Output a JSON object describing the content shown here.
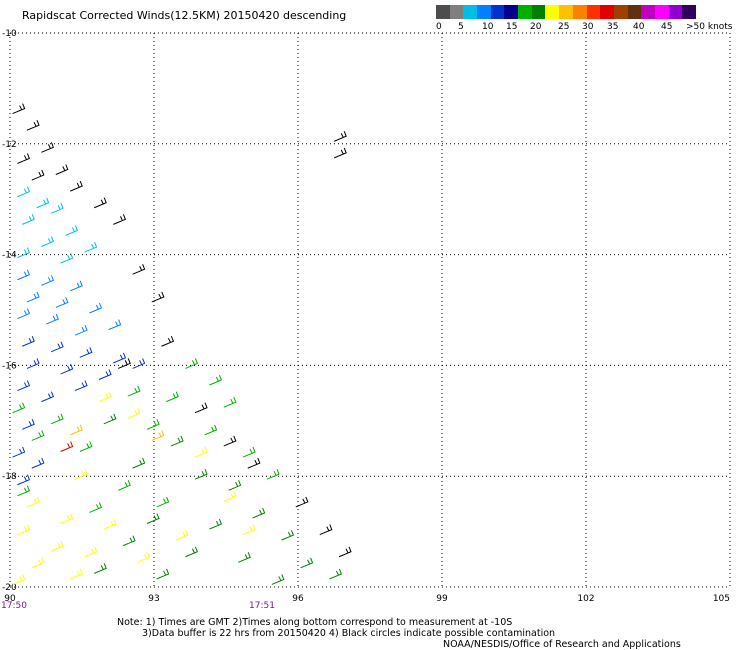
{
  "title": "Rapidscat Corrected Winds(12.5KM) 20150420 descending",
  "legend": {
    "colors": [
      "#4d4d4d",
      "#7f7f7f",
      "#00bfe6",
      "#0080ff",
      "#0033cc",
      "#000090",
      "#00b000",
      "#008000",
      "#ffff00",
      "#ffc000",
      "#ff8000",
      "#ff3000",
      "#e00000",
      "#a04000",
      "#603010",
      "#c000c0",
      "#ff00ff",
      "#9000d0",
      "#300060"
    ],
    "labels": [
      "0",
      "5",
      "10",
      "15",
      "20",
      "25",
      "30",
      "35",
      "40",
      "45",
      ">50 knots"
    ]
  },
  "chart_data": {
    "type": "scatter",
    "xlim": [
      90,
      105
    ],
    "ylim": [
      -20,
      -10
    ],
    "x_ticks": [
      "90",
      "93",
      "96",
      "99",
      "102",
      "105"
    ],
    "y_ticks": [
      "-10",
      "-12",
      "-14",
      "-16",
      "-18",
      "-20"
    ],
    "grid": true,
    "bottom_times": [
      "17:50",
      "17:51"
    ],
    "series": [
      {
        "color": "#000000",
        "points": [
          [
            90.2,
            -11.4
          ],
          [
            90.5,
            -11.7
          ],
          [
            90.8,
            -12.1
          ],
          [
            90.3,
            -12.3
          ],
          [
            91.1,
            -12.5
          ],
          [
            90.6,
            -12.6
          ],
          [
            91.4,
            -12.8
          ],
          [
            91.9,
            -13.1
          ],
          [
            92.3,
            -13.4
          ],
          [
            96.9,
            -11.9
          ],
          [
            96.9,
            -12.2
          ],
          [
            92.7,
            -14.3
          ],
          [
            93.1,
            -14.8
          ],
          [
            93.3,
            -15.6
          ],
          [
            92.4,
            -16.0
          ],
          [
            94.0,
            -16.8
          ],
          [
            94.6,
            -17.4
          ],
          [
            95.1,
            -17.8
          ],
          [
            96.1,
            -18.5
          ],
          [
            96.6,
            -19.0
          ],
          [
            97.0,
            -19.4
          ]
        ]
      },
      {
        "color": "#00bfe6",
        "points": [
          [
            90.3,
            -12.9
          ],
          [
            90.7,
            -13.1
          ],
          [
            91.0,
            -13.2
          ],
          [
            90.4,
            -13.4
          ],
          [
            91.3,
            -13.6
          ],
          [
            90.8,
            -13.8
          ],
          [
            91.7,
            -13.9
          ],
          [
            90.3,
            -14.0
          ],
          [
            91.2,
            -14.1
          ]
        ]
      },
      {
        "color": "#0080ff",
        "points": [
          [
            90.3,
            -14.4
          ],
          [
            90.8,
            -14.5
          ],
          [
            91.4,
            -14.6
          ],
          [
            90.5,
            -14.8
          ],
          [
            91.1,
            -14.9
          ],
          [
            91.8,
            -15.0
          ],
          [
            90.3,
            -15.1
          ],
          [
            90.9,
            -15.2
          ],
          [
            92.2,
            -15.3
          ],
          [
            91.5,
            -15.4
          ]
        ]
      },
      {
        "color": "#0033cc",
        "points": [
          [
            90.4,
            -15.6
          ],
          [
            91.0,
            -15.7
          ],
          [
            91.6,
            -15.8
          ],
          [
            92.3,
            -15.9
          ],
          [
            90.5,
            -16.0
          ],
          [
            91.2,
            -16.1
          ],
          [
            92.0,
            -16.2
          ],
          [
            92.7,
            -16.0
          ],
          [
            90.3,
            -16.4
          ],
          [
            90.8,
            -16.6
          ],
          [
            91.5,
            -16.4
          ],
          [
            90.4,
            -17.1
          ],
          [
            90.2,
            -17.6
          ],
          [
            90.6,
            -17.8
          ],
          [
            90.3,
            -18.1
          ]
        ]
      },
      {
        "color": "#00b000",
        "points": [
          [
            93.8,
            -16.0
          ],
          [
            94.3,
            -16.3
          ],
          [
            92.6,
            -16.5
          ],
          [
            93.4,
            -16.6
          ],
          [
            94.6,
            -16.7
          ],
          [
            90.2,
            -16.8
          ],
          [
            91.0,
            -17.0
          ],
          [
            93.0,
            -17.1
          ],
          [
            94.2,
            -17.2
          ],
          [
            90.6,
            -17.3
          ],
          [
            91.6,
            -17.5
          ],
          [
            95.0,
            -17.6
          ],
          [
            90.3,
            -18.3
          ],
          [
            92.4,
            -18.2
          ],
          [
            93.2,
            -18.5
          ],
          [
            95.5,
            -18.0
          ],
          [
            91.8,
            -18.6
          ]
        ]
      },
      {
        "color": "#008000",
        "points": [
          [
            92.1,
            -17.0
          ],
          [
            93.5,
            -17.4
          ],
          [
            92.7,
            -17.8
          ],
          [
            94.0,
            -18.0
          ],
          [
            94.7,
            -18.2
          ],
          [
            93.0,
            -18.8
          ],
          [
            94.3,
            -18.9
          ],
          [
            95.2,
            -18.7
          ],
          [
            95.8,
            -19.1
          ],
          [
            92.5,
            -19.2
          ],
          [
            93.8,
            -19.4
          ],
          [
            94.9,
            -19.5
          ],
          [
            96.2,
            -19.6
          ],
          [
            91.9,
            -19.7
          ],
          [
            93.2,
            -19.8
          ],
          [
            95.6,
            -19.9
          ],
          [
            96.8,
            -19.8
          ]
        ]
      },
      {
        "color": "#ffff00",
        "points": [
          [
            92.0,
            -16.6
          ],
          [
            92.6,
            -16.9
          ],
          [
            91.5,
            -18.0
          ],
          [
            90.5,
            -18.5
          ],
          [
            91.2,
            -18.8
          ],
          [
            92.1,
            -18.9
          ],
          [
            90.3,
            -19.0
          ],
          [
            91.0,
            -19.3
          ],
          [
            91.7,
            -19.4
          ],
          [
            90.6,
            -19.6
          ],
          [
            91.4,
            -19.8
          ],
          [
            90.2,
            -19.9
          ],
          [
            94.0,
            -17.6
          ],
          [
            94.6,
            -18.4
          ],
          [
            95.0,
            -19.0
          ],
          [
            93.6,
            -19.1
          ],
          [
            92.8,
            -19.5
          ]
        ]
      },
      {
        "color": "#ffc000",
        "points": [
          [
            91.4,
            -17.2
          ],
          [
            93.1,
            -17.3
          ]
        ]
      },
      {
        "color": "#e00000",
        "points": [
          [
            91.2,
            -17.5
          ]
        ]
      }
    ]
  },
  "notes": [
    "Note: 1) Times are GMT 2)Times along bottom correspond to measurement at -10S",
    "3)Data buffer is 22 hrs from 20150420 4) Black circles indicate possible contamination",
    "NOAA/NESDIS/Office of Research and Applications"
  ]
}
